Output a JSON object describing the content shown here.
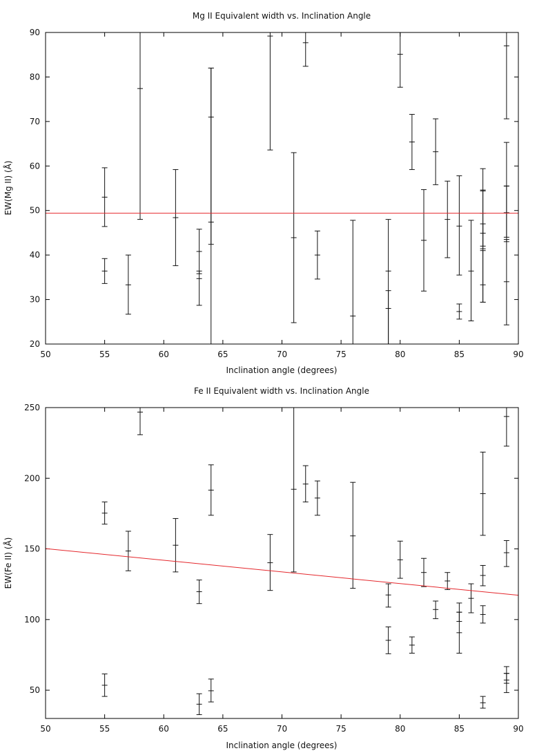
{
  "chart_data": [
    {
      "type": "scatter",
      "title": "Mg II Equivalent width vs. Inclination Angle",
      "xlabel": "Inclination angle (degrees)",
      "ylabel": "EW(Mg II) (Å)",
      "xlim": [
        50,
        90
      ],
      "ylim": [
        20,
        90
      ],
      "xticks": [
        50,
        55,
        60,
        65,
        70,
        75,
        80,
        85,
        90
      ],
      "yticks": [
        20,
        30,
        40,
        50,
        60,
        70,
        80,
        90
      ],
      "series": [
        {
          "name": "EW(Mg II) measurements",
          "points": [
            {
              "x": 55,
              "y": 53.0,
              "lo": 46.4,
              "hi": 59.6
            },
            {
              "x": 55,
              "y": 36.4,
              "lo": 33.6,
              "hi": 39.2
            },
            {
              "x": 57,
              "y": 33.3,
              "lo": 26.7,
              "hi": 40.0
            },
            {
              "x": 58,
              "y": 77.4,
              "lo": 48.0,
              "hi": 90
            },
            {
              "x": 61,
              "y": 48.4,
              "lo": 37.6,
              "hi": 59.2
            },
            {
              "x": 63,
              "y": 40.8,
              "lo": 35.8,
              "hi": 45.8
            },
            {
              "x": 63,
              "y": 34.7,
              "lo": 28.7,
              "hi": 36.4
            },
            {
              "x": 64,
              "y": 71.0,
              "lo": 20,
              "hi": 82.0
            },
            {
              "x": 64,
              "y": 47.4,
              "lo": 42.4,
              "hi": 82.0
            },
            {
              "x": 69,
              "y": 89.2,
              "lo": 63.6,
              "hi": 90
            },
            {
              "x": 71,
              "y": 43.9,
              "lo": 24.8,
              "hi": 63.0
            },
            {
              "x": 72,
              "y": 87.7,
              "lo": 82.4,
              "hi": 90
            },
            {
              "x": 73,
              "y": 40.0,
              "lo": 34.6,
              "hi": 45.4
            },
            {
              "x": 76,
              "y": 26.3,
              "lo": 20,
              "hi": 47.8
            },
            {
              "x": 79,
              "y": 36.4,
              "lo": 20,
              "hi": 48.0
            },
            {
              "x": 79,
              "y": 28.0,
              "lo": 20,
              "hi": 32.0
            },
            {
              "x": 80,
              "y": 85.1,
              "lo": 77.7,
              "hi": 90
            },
            {
              "x": 81,
              "y": 65.4,
              "lo": 59.2,
              "hi": 71.6
            },
            {
              "x": 82,
              "y": 43.3,
              "lo": 31.9,
              "hi": 54.7
            },
            {
              "x": 83,
              "y": 63.2,
              "lo": 55.8,
              "hi": 70.6
            },
            {
              "x": 84,
              "y": 48.0,
              "lo": 39.4,
              "hi": 56.6
            },
            {
              "x": 85,
              "y": 46.5,
              "lo": 35.5,
              "hi": 57.8
            },
            {
              "x": 85,
              "y": 27.3,
              "lo": 25.6,
              "hi": 29.0
            },
            {
              "x": 86,
              "y": 36.4,
              "lo": 25.2,
              "hi": 47.8
            },
            {
              "x": 87,
              "y": 54.4,
              "lo": 41.4,
              "hi": 59.4
            },
            {
              "x": 87,
              "y": 49.4,
              "lo": 42.0,
              "hi": 54.6
            },
            {
              "x": 87,
              "y": 44.9,
              "lo": 29.4,
              "hi": 47.0
            },
            {
              "x": 87,
              "y": 33.3,
              "lo": 29.4,
              "hi": 41.0
            },
            {
              "x": 89,
              "y": 87.0,
              "lo": 70.6,
              "hi": 90
            },
            {
              "x": 89,
              "y": 55.5,
              "lo": 43.0,
              "hi": 65.3
            },
            {
              "x": 89,
              "y": 49.5,
              "lo": 44.0,
              "hi": 55.5
            },
            {
              "x": 89,
              "y": 34.0,
              "lo": 24.3,
              "hi": 43.5
            }
          ]
        }
      ],
      "fit_line": {
        "x": [
          50,
          90
        ],
        "y": [
          49.4,
          49.4
        ],
        "color": "#e4262b"
      }
    },
    {
      "type": "scatter",
      "title": "Fe II Equivalent width vs. Inclination Angle",
      "xlabel": "Inclination angle (degrees)",
      "ylabel": "EW(Fe II) (Å)",
      "xlim": [
        50,
        90
      ],
      "ylim": [
        30,
        250
      ],
      "xticks": [
        50,
        55,
        60,
        65,
        70,
        75,
        80,
        85,
        90
      ],
      "yticks": [
        50,
        100,
        150,
        200,
        250
      ],
      "series": [
        {
          "name": "EW(Fe II) measurements",
          "points": [
            {
              "x": 55,
              "y": 175.3,
              "lo": 167.5,
              "hi": 183.2
            },
            {
              "x": 55,
              "y": 53.5,
              "lo": 45.6,
              "hi": 61.5
            },
            {
              "x": 57,
              "y": 148.5,
              "lo": 134.5,
              "hi": 162.5
            },
            {
              "x": 58,
              "y": 246.8,
              "lo": 230.8,
              "hi": 250
            },
            {
              "x": 61,
              "y": 152.6,
              "lo": 133.7,
              "hi": 171.5
            },
            {
              "x": 63,
              "y": 119.7,
              "lo": 111.3,
              "hi": 128.0
            },
            {
              "x": 63,
              "y": 40.1,
              "lo": 32.7,
              "hi": 47.5
            },
            {
              "x": 64,
              "y": 191.6,
              "lo": 173.8,
              "hi": 209.5
            },
            {
              "x": 64,
              "y": 49.6,
              "lo": 41.7,
              "hi": 57.9
            },
            {
              "x": 69,
              "y": 140.2,
              "lo": 120.6,
              "hi": 160.2
            },
            {
              "x": 71,
              "y": 192.2,
              "lo": 133.7,
              "hi": 250
            },
            {
              "x": 72,
              "y": 195.9,
              "lo": 183.2,
              "hi": 208.9
            },
            {
              "x": 73,
              "y": 186.0,
              "lo": 173.8,
              "hi": 198.1
            },
            {
              "x": 76,
              "y": 159.2,
              "lo": 122.1,
              "hi": 197.1
            },
            {
              "x": 79,
              "y": 117.4,
              "lo": 108.8,
              "hi": 125.3
            },
            {
              "x": 79,
              "y": 85.3,
              "lo": 75.8,
              "hi": 94.8
            },
            {
              "x": 80,
              "y": 142.3,
              "lo": 129.2,
              "hi": 155.5
            },
            {
              "x": 81,
              "y": 81.9,
              "lo": 76.2,
              "hi": 87.7
            },
            {
              "x": 82,
              "y": 133.3,
              "lo": 123.3,
              "hi": 143.3
            },
            {
              "x": 83,
              "y": 107.1,
              "lo": 100.6,
              "hi": 113.1
            },
            {
              "x": 84,
              "y": 127.3,
              "lo": 121.2,
              "hi": 133.3
            },
            {
              "x": 85,
              "y": 105.2,
              "lo": 98.7,
              "hi": 111.7
            },
            {
              "x": 85,
              "y": 90.7,
              "lo": 76.2,
              "hi": 105.2
            },
            {
              "x": 86,
              "y": 115.0,
              "lo": 104.8,
              "hi": 125.3
            },
            {
              "x": 87,
              "y": 189.1,
              "lo": 159.6,
              "hi": 218.5
            },
            {
              "x": 87,
              "y": 131.2,
              "lo": 123.9,
              "hi": 138.3
            },
            {
              "x": 87,
              "y": 103.6,
              "lo": 97.5,
              "hi": 109.8
            },
            {
              "x": 87,
              "y": 41.1,
              "lo": 37.3,
              "hi": 45.6
            },
            {
              "x": 89,
              "y": 243.7,
              "lo": 222.7,
              "hi": 250
            },
            {
              "x": 89,
              "y": 147.3,
              "lo": 137.5,
              "hi": 155.9
            },
            {
              "x": 89,
              "y": 61.9,
              "lo": 54.9,
              "hi": 66.7
            },
            {
              "x": 89,
              "y": 57.2,
              "lo": 48.3,
              "hi": 61.9
            }
          ]
        }
      ],
      "fit_line": {
        "x": [
          50,
          90
        ],
        "y": [
          150.2,
          117.2
        ],
        "color": "#e4262b"
      }
    }
  ]
}
